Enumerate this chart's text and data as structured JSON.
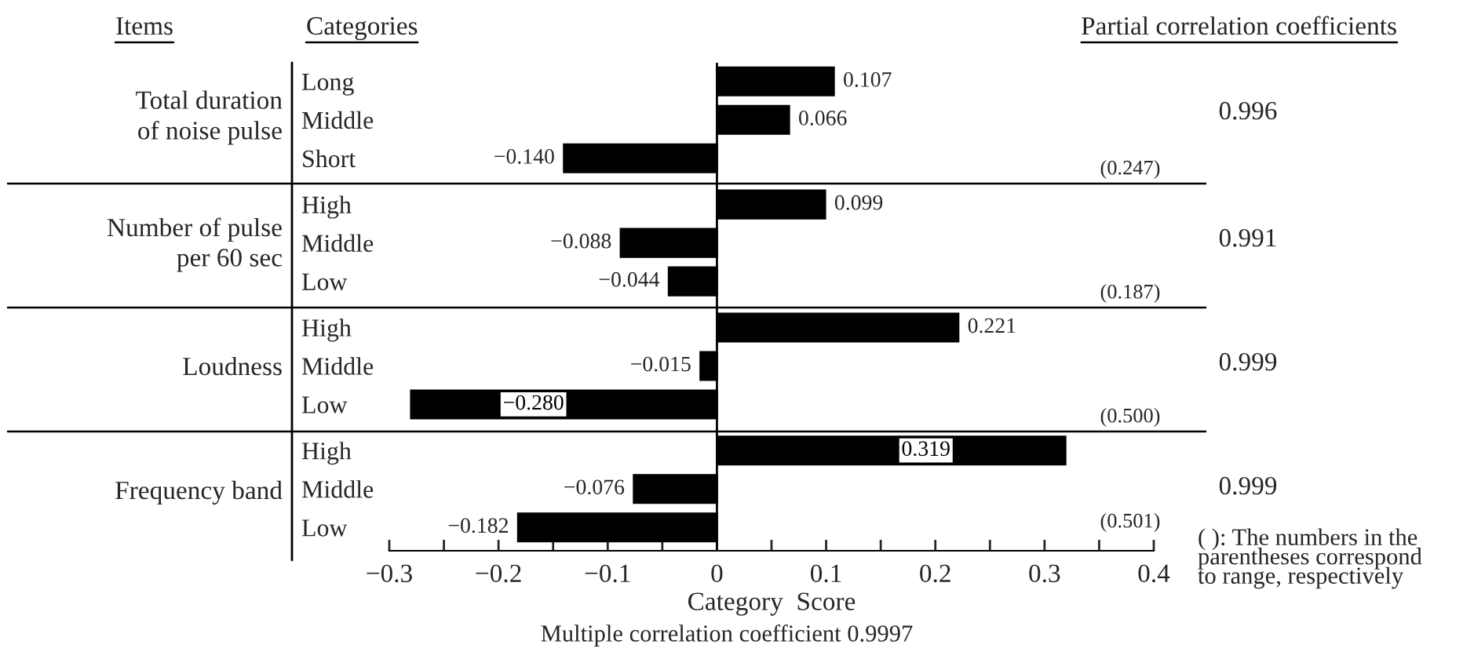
{
  "chart_data": {
    "type": "bar",
    "orientation": "horizontal",
    "categories": [
      "Long",
      "Middle",
      "Short",
      "High",
      "Middle",
      "Low",
      "High",
      "Middle",
      "Low",
      "High",
      "Middle",
      "Low"
    ],
    "values": [
      0.107,
      0.066,
      -0.14,
      0.099,
      -0.088,
      -0.044,
      0.221,
      -0.015,
      -0.28,
      0.319,
      -0.076,
      -0.182
    ],
    "value_labels": [
      "0.107",
      "0.066",
      "−0.140",
      "0.099",
      "−0.088",
      "−0.044",
      "0.221",
      "−0.015",
      "−0.280",
      "0.319",
      "−0.076",
      "−0.182"
    ],
    "color": "#000000",
    "xlabel": "Category  Score",
    "xlim": [
      -0.3,
      0.4
    ],
    "xticks": [
      {
        "value": -0.3,
        "label": "−0.3"
      },
      {
        "value": -0.25,
        "label": null
      },
      {
        "value": -0.2,
        "label": "−0.2"
      },
      {
        "value": -0.15,
        "label": null
      },
      {
        "value": -0.1,
        "label": "−0.1"
      },
      {
        "value": -0.05,
        "label": null
      },
      0,
      {
        "value": 0.05,
        "label": null
      },
      0.1,
      {
        "value": 0.15,
        "label": null
      },
      0.2,
      {
        "value": 0.25,
        "label": null
      },
      0.3,
      {
        "value": 0.35,
        "label": null
      },
      0.4
    ],
    "ref_lines": [
      {
        "axis": "x",
        "value": 0,
        "color": "#000000"
      }
    ],
    "grid": false,
    "annotations": [
      "Items",
      "Categories",
      "Partial correlation coefficients",
      "Total duration\nof noise pulse",
      "Number of pulse\nper 60 sec",
      "Loudness",
      "Frequency band",
      "0.996",
      "0.991",
      "0.999",
      "0.999",
      "(0.247)",
      "(0.187)",
      "(0.500)",
      "(0.501)",
      "( ): The numbers in the\nparentheses correspond\nto range, respectively",
      "Multiple correlation coefficient 0.9997"
    ]
  }
}
